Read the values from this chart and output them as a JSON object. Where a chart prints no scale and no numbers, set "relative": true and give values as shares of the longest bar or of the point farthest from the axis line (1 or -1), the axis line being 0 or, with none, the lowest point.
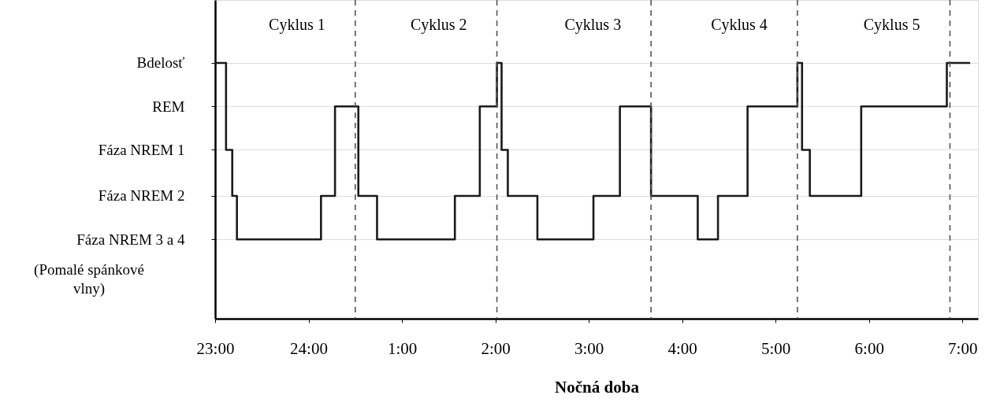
{
  "chart_data": {
    "type": "step",
    "xlabel": "Nočná doba",
    "relative": true,
    "x": [
      "2000-01-01T23:00",
      "2000-01-01T23:07",
      "2000-01-01T23:11",
      "2000-01-01T23:14",
      "2000-01-02T00:08",
      "2000-01-02T00:17",
      "2000-01-02T00:32",
      "2000-01-02T00:44",
      "2000-01-02T01:34",
      "2000-01-02T01:50",
      "2000-01-02T02:01",
      "2000-01-02T02:04",
      "2000-01-02T02:08",
      "2000-01-02T02:27",
      "2000-01-02T03:03",
      "2000-01-02T03:20",
      "2000-01-02T03:40",
      "2000-01-02T04:10",
      "2000-01-02T04:23",
      "2000-01-02T04:42",
      "2000-01-02T05:14",
      "2000-01-02T05:17",
      "2000-01-02T05:22",
      "2000-01-02T05:55",
      "2000-01-02T06:50",
      "2000-01-02T07:05"
    ],
    "series": [
      {
        "color": "#1a1a1a",
        "values": [
          1,
          0.66,
          0.48,
          0.31,
          0.48,
          0.83,
          0.48,
          0.31,
          0.48,
          0.83,
          1,
          0.66,
          0.48,
          0.31,
          0.48,
          0.83,
          0.48,
          0.31,
          0.48,
          0.83,
          1,
          0.66,
          0.48,
          0.83,
          1,
          1
        ]
      }
    ],
    "xlim": [
      "2000-01-01T23:00",
      "2000-01-02T07:10"
    ],
    "xticks": [
      {
        "value": "2000-01-01T23:00",
        "label": "23:00"
      },
      {
        "value": "2000-01-02T00:00",
        "label": "24:00"
      },
      {
        "value": "2000-01-02T01:00",
        "label": "1:00"
      },
      {
        "value": "2000-01-02T02:00",
        "label": "2:00"
      },
      {
        "value": "2000-01-02T03:00",
        "label": "3:00"
      },
      {
        "value": "2000-01-02T04:00",
        "label": "4:00"
      },
      {
        "value": "2000-01-02T05:00",
        "label": "5:00"
      },
      {
        "value": "2000-01-02T06:00",
        "label": "6:00"
      },
      {
        "value": "2000-01-02T07:00",
        "label": "7:00"
      }
    ],
    "ref_lines": [
      {
        "axis": "x",
        "value": "2000-01-02T00:30",
        "label": "Cyklus 1",
        "color": "#555555",
        "line_style": "dashed"
      },
      {
        "axis": "x",
        "value": "2000-01-02T02:01",
        "label": "Cyklus 2",
        "color": "#555555",
        "line_style": "dashed"
      },
      {
        "axis": "x",
        "value": "2000-01-02T03:40",
        "label": "Cyklus 3",
        "color": "#555555",
        "line_style": "dashed"
      },
      {
        "axis": "x",
        "value": "2000-01-02T05:14",
        "label": "Cyklus 4",
        "color": "#555555",
        "line_style": "dashed"
      },
      {
        "axis": "x",
        "value": "2000-01-02T06:52",
        "label": "Cyklus 5",
        "color": "#555555",
        "line_style": "dashed"
      }
    ],
    "annotations": [
      "Bdelosť",
      "REM",
      "Fáza NREM 1",
      "Fáza NREM 2",
      "Fáza NREM 3 a 4",
      "(Pomalé spánkové vlny)"
    ],
    "grid": "y",
    "line_style": "solid",
    "marker": "none"
  }
}
